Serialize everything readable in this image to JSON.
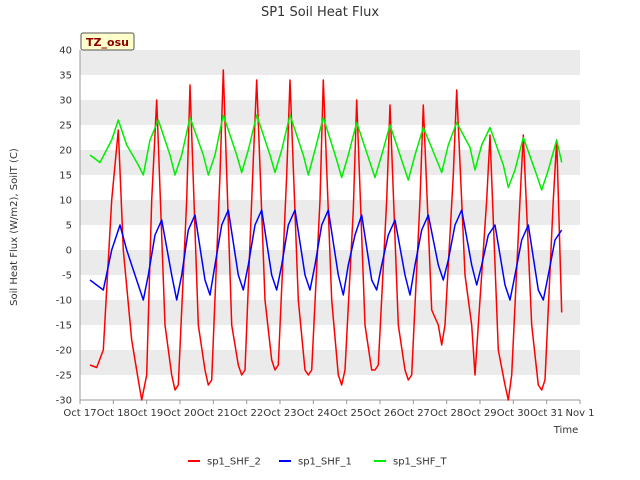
{
  "chart_data": {
    "type": "line",
    "title": "SP1 Soil Heat Flux",
    "xlabel": "Time",
    "ylabel": "Soil Heat Flux (W/m2), SoilT (C)",
    "tag": "TZ_osu",
    "ylim": [
      -30,
      40
    ],
    "yticks": [
      -30,
      -25,
      -20,
      -15,
      -10,
      -5,
      0,
      5,
      10,
      15,
      20,
      25,
      30,
      35,
      40
    ],
    "xlim": [
      0,
      15
    ],
    "xticks": [
      0,
      1,
      2,
      3,
      4,
      5,
      6,
      7,
      8,
      9,
      10,
      11,
      12,
      13,
      14,
      15
    ],
    "xtick_labels": [
      "Oct 17",
      "Oct 18",
      "Oct 19",
      "Oct 20",
      "Oct 21",
      "Oct 22",
      "Oct 23",
      "Oct 24",
      "Oct 25",
      "Oct 26",
      "Oct 27",
      "Oct 28",
      "Oct 29",
      "Oct 30",
      "Oct 31",
      "Nov 1"
    ],
    "grid": "horizontal bands",
    "legend_position": "bottom",
    "colors": {
      "band": "#ebebeb",
      "axis": "#999999",
      "tag_bg": "#ffffcc"
    },
    "series": [
      {
        "name": "sp1_SHF_2",
        "color": "#ff0000",
        "x": [
          0.3,
          0.5,
          0.7,
          0.95,
          1.15,
          1.3,
          1.55,
          1.75,
          1.85,
          2.0,
          2.15,
          2.3,
          2.55,
          2.75,
          2.85,
          2.95,
          3.2,
          3.3,
          3.55,
          3.75,
          3.85,
          3.95,
          4.2,
          4.3,
          4.55,
          4.75,
          4.85,
          4.95,
          5.2,
          5.3,
          5.55,
          5.75,
          5.85,
          5.95,
          6.2,
          6.3,
          6.55,
          6.75,
          6.85,
          6.95,
          7.2,
          7.3,
          7.55,
          7.75,
          7.85,
          7.95,
          8.2,
          8.3,
          8.55,
          8.75,
          8.85,
          8.95,
          9.2,
          9.3,
          9.55,
          9.75,
          9.85,
          9.95,
          10.2,
          10.3,
          10.55,
          10.75,
          10.85,
          10.95,
          11.2,
          11.3,
          11.55,
          11.75,
          11.85,
          11.95,
          12.2,
          12.3,
          12.55,
          12.75,
          12.85,
          12.95,
          13.2,
          13.3,
          13.55,
          13.75,
          13.85,
          13.95,
          14.2,
          14.3,
          14.45
        ],
        "y": [
          -23,
          -23.5,
          -20,
          10,
          24,
          0,
          -18,
          -26,
          -30,
          -25,
          10,
          30,
          -15,
          -25,
          -28,
          -27,
          10,
          33,
          -15,
          -24,
          -27,
          -26,
          15,
          36,
          -15,
          -23,
          -25,
          -24,
          18,
          34,
          -10,
          -22,
          -24,
          -23,
          15,
          34,
          -10,
          -24,
          -25,
          -24,
          10,
          34,
          -10,
          -25,
          -27,
          -24,
          8,
          30,
          -15,
          -24,
          -24,
          -23,
          10,
          29,
          -15,
          -24,
          -26,
          -25,
          10,
          29,
          -12,
          -15,
          -19,
          -15,
          15,
          32,
          -5,
          -15,
          -25,
          -15,
          10,
          23,
          -20,
          -27,
          -30,
          -25,
          10,
          23,
          -15,
          -27,
          -28,
          -26,
          10,
          22,
          -12.5
        ]
      },
      {
        "name": "sp1_SHF_1",
        "color": "#0000ff",
        "x": [
          0.3,
          0.7,
          0.95,
          1.2,
          1.4,
          1.75,
          1.9,
          2.05,
          2.25,
          2.45,
          2.75,
          2.9,
          3.05,
          3.25,
          3.45,
          3.75,
          3.9,
          4.05,
          4.25,
          4.45,
          4.75,
          4.9,
          5.05,
          5.25,
          5.45,
          5.75,
          5.9,
          6.05,
          6.25,
          6.45,
          6.75,
          6.9,
          7.05,
          7.25,
          7.45,
          7.75,
          7.9,
          8.05,
          8.25,
          8.45,
          8.75,
          8.9,
          9.05,
          9.25,
          9.45,
          9.75,
          9.9,
          10.05,
          10.25,
          10.45,
          10.75,
          10.9,
          11.05,
          11.25,
          11.45,
          11.75,
          11.9,
          12.05,
          12.25,
          12.45,
          12.75,
          12.9,
          13.05,
          13.25,
          13.45,
          13.75,
          13.9,
          14.05,
          14.25,
          14.45
        ],
        "y": [
          -6,
          -8,
          0,
          5,
          0,
          -7,
          -10,
          -5,
          3,
          6,
          -5,
          -10,
          -5,
          4,
          7,
          -6,
          -9,
          -3,
          5,
          8,
          -5,
          -8,
          -3,
          5,
          8,
          -5,
          -8,
          -3,
          5,
          8,
          -5,
          -8,
          -3,
          5,
          8,
          -5,
          -9,
          -3,
          3,
          7,
          -6,
          -8,
          -3,
          3,
          6,
          -5,
          -9,
          -3,
          4,
          7,
          -3,
          -6,
          -2,
          5,
          8,
          -3,
          -7,
          -3,
          3,
          5,
          -7,
          -10,
          -5,
          2,
          5,
          -8,
          -10,
          -5,
          2,
          4
        ]
      },
      {
        "name": "sp1_SHF_T",
        "color": "#00ee00",
        "x": [
          0.3,
          0.6,
          0.95,
          1.15,
          1.4,
          1.75,
          1.9,
          2.1,
          2.35,
          2.7,
          2.85,
          3.05,
          3.3,
          3.7,
          3.85,
          4.05,
          4.3,
          4.7,
          4.85,
          5.05,
          5.3,
          5.7,
          5.85,
          6.05,
          6.3,
          6.7,
          6.85,
          7.05,
          7.3,
          7.7,
          7.85,
          8.05,
          8.3,
          8.7,
          8.85,
          9.05,
          9.3,
          9.7,
          9.85,
          10.05,
          10.3,
          10.7,
          10.85,
          11.05,
          11.3,
          11.7,
          11.85,
          12.05,
          12.3,
          12.7,
          12.85,
          13.05,
          13.3,
          13.7,
          13.85,
          14.05,
          14.3,
          14.45
        ],
        "y": [
          19,
          17.5,
          22,
          26,
          21,
          17,
          15,
          22,
          26,
          19,
          15,
          19,
          26.5,
          19,
          15,
          19,
          27,
          19,
          15.5,
          20,
          27,
          19,
          15.5,
          20,
          27,
          19,
          15,
          20,
          26.5,
          18,
          14.5,
          19,
          25.5,
          17.5,
          14.5,
          19,
          25,
          17,
          14,
          19,
          24.5,
          18,
          15.5,
          21,
          25.5,
          20.5,
          16,
          21,
          24.5,
          17,
          12.5,
          16,
          22.5,
          15,
          12,
          16,
          22,
          17.5
        ]
      }
    ]
  }
}
